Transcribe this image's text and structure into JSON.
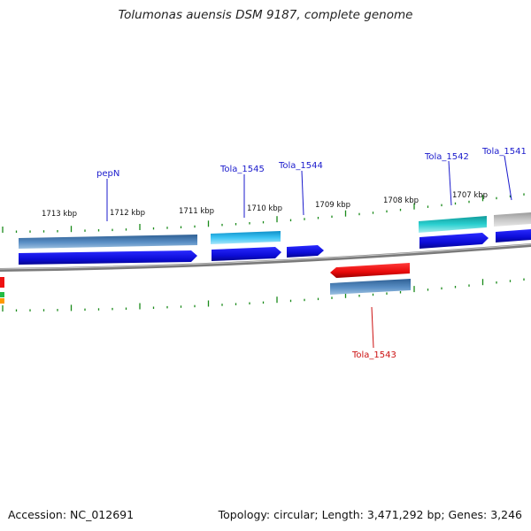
{
  "title": "Tolumonas auensis DSM 9187, complete genome",
  "footer": {
    "accession": "Accession: NC_012691",
    "topology": "Topology: circular; Length: 3,471,292 bp; Genes: 3,246"
  },
  "colors": {
    "backbone": "#8a8a8a",
    "tick": "#1a8a1a",
    "gene_blue": "#1010e8",
    "gene_steel": "#4a7fb5",
    "gene_sky": "#33bbee",
    "gene_teal": "#22c4c4",
    "gene_red": "#ee1111",
    "gene_gray": "#b8b8b8",
    "label_blue": "#1a1acc",
    "label_red": "#cc1111"
  },
  "tick_labels": [
    "1713 kbp",
    "1712 kbp",
    "1711 kbp",
    "1710 kbp",
    "1709 kbp",
    "1708 kbp",
    "1707 kbp"
  ],
  "gene_labels": {
    "pepN": "pepN",
    "tola_1545": "Tola_1545",
    "tola_1544": "Tola_1544",
    "tola_1543": "Tola_1543",
    "tola_1542": "Tola_1542",
    "tola_1541": "Tola_1541"
  }
}
